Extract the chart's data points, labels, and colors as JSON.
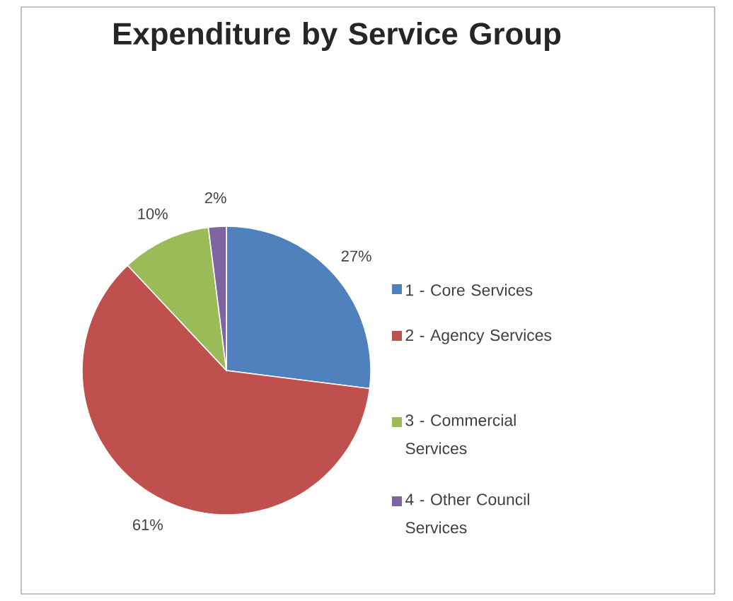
{
  "chart_data": {
    "type": "pie",
    "title": "Expenditure by Service Group",
    "categories": [
      "1 - Core Services",
      "2 - Agency Services",
      "3 - Commercial Services",
      "4 - Other Council Services"
    ],
    "values": [
      27,
      61,
      10,
      2
    ],
    "value_labels": [
      "27%",
      "61%",
      "10%",
      "2%"
    ],
    "colors": [
      "#4f81bd",
      "#c0504d",
      "#9bbb59",
      "#8064a2"
    ],
    "legend": "right"
  }
}
